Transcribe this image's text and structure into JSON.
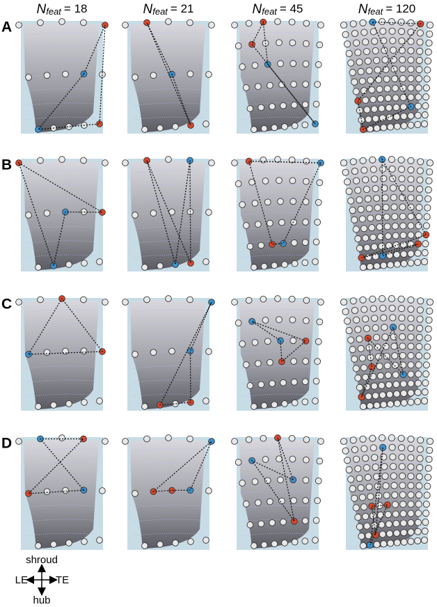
{
  "columns": [
    {
      "symbol": "N",
      "subscript": "feat",
      "value": "= 18"
    },
    {
      "symbol": "N",
      "subscript": "feat",
      "value": "= 21"
    },
    {
      "symbol": "N",
      "subscript": "feat",
      "value": "= 45"
    },
    {
      "symbol": "N",
      "subscript": "feat",
      "value": "= 120"
    }
  ],
  "rows": [
    "A",
    "B",
    "C",
    "D"
  ],
  "legend": {
    "up": "shroud",
    "left": "LE",
    "right": "TE",
    "down": "hub"
  }
}
